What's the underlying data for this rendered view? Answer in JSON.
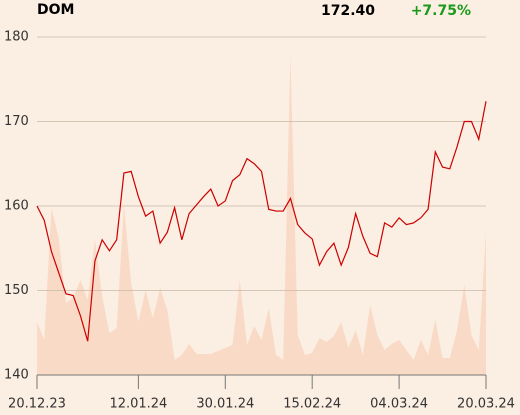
{
  "chart_data": {
    "type": "line",
    "title": "DOM",
    "last_price": "172.40",
    "change": "+7.75%",
    "change_color": "#1a9a1a",
    "categories": [
      "20.12.23",
      null,
      null,
      null,
      null,
      null,
      null,
      null,
      null,
      null,
      null,
      null,
      null,
      null,
      "12.01.24",
      null,
      null,
      null,
      null,
      null,
      null,
      null,
      null,
      null,
      null,
      null,
      "30.01.24",
      null,
      null,
      null,
      null,
      null,
      null,
      null,
      null,
      null,
      null,
      null,
      "15.02.24",
      null,
      null,
      null,
      null,
      null,
      null,
      null,
      null,
      null,
      null,
      null,
      "04.03.24",
      null,
      null,
      null,
      null,
      null,
      null,
      null,
      null,
      null,
      null,
      null,
      "20.03.24"
    ],
    "series": [
      {
        "color": "#cc0000",
        "values": [
          160.0,
          158.3,
          154.6,
          152.1,
          149.6,
          149.4,
          147.0,
          144.0,
          153.5,
          156.0,
          154.7,
          156.0,
          163.9,
          164.1,
          161.1,
          158.8,
          159.4,
          155.6,
          156.9,
          159.8,
          156.0,
          159.1,
          160.1,
          161.1,
          162.0,
          160.0,
          160.6,
          163.0,
          163.7,
          165.6,
          165.0,
          164.1,
          159.6,
          159.4,
          159.4,
          160.9,
          157.8,
          156.8,
          156.1,
          153.0,
          154.6,
          155.6,
          153.0,
          155.1,
          159.1,
          156.4,
          154.4,
          154.0,
          158.0,
          157.5,
          158.6,
          157.8,
          158.0,
          158.6,
          159.6,
          166.4,
          164.6,
          164.4,
          167.0,
          170.0,
          170.0,
          167.9,
          172.4
        ]
      },
      {
        "color": "#f9dac6",
        "axis": "y2",
        "values": [
          53,
          35,
          167,
          137,
          72,
          77,
          95,
          75,
          135,
          79,
          42,
          47,
          170,
          92,
          53,
          85,
          57,
          87,
          65,
          15,
          20,
          31,
          21,
          21,
          21,
          24,
          27,
          30,
          95,
          30,
          49,
          35,
          67,
          20,
          15,
          320,
          40,
          20,
          22,
          37,
          33,
          39,
          53,
          27,
          45,
          20,
          70,
          40,
          25,
          31,
          35,
          25,
          15,
          35,
          20,
          55,
          17,
          17,
          45,
          90,
          40,
          25,
          143
        ]
      }
    ],
    "ylim": [
      140,
      180
    ],
    "yticks": [
      140,
      150,
      160,
      170,
      180
    ],
    "y2lim": [
      0,
      338
    ],
    "grid": true
  }
}
